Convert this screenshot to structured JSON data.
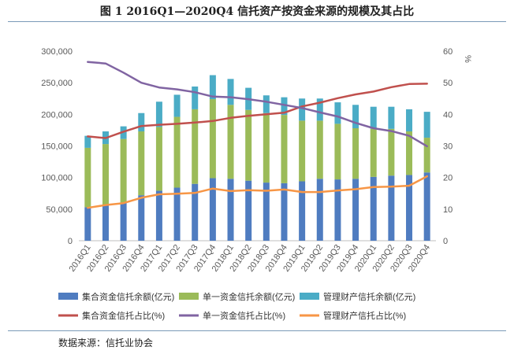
{
  "title": "图 1    2016Q1—2020Q4 信托资产按资金来源的规模及其占比",
  "source": "数据来源：信托业协会",
  "chart_data": {
    "type": "bar",
    "stacked": true,
    "categories": [
      "2016Q1",
      "2016Q2",
      "2016Q3",
      "2016Q4",
      "2017Q1",
      "2017Q2",
      "2017Q3",
      "2017Q4",
      "2018Q1",
      "2018Q2",
      "2018Q3",
      "2018Q4",
      "2019Q1",
      "2019Q2",
      "2019Q3",
      "2019Q4",
      "2020Q1",
      "2020Q2",
      "2020Q3",
      "2020Q4"
    ],
    "y_left": {
      "ylim": [
        0,
        300000
      ],
      "ticks": [
        "0",
        "50,000",
        "100,000",
        "150,000",
        "200,000",
        "250,000",
        "300,000"
      ]
    },
    "y_right": {
      "ylim": [
        0,
        60
      ],
      "ticks": [
        "0",
        "10",
        "20",
        "30",
        "40",
        "50",
        "60"
      ],
      "label": "%"
    },
    "grid": false,
    "legend_position": "bottom",
    "bar_series": [
      {
        "name": "集合资金信托余额(亿元)",
        "color": "#4f7cc0",
        "values": [
          53000,
          56000,
          60000,
          72000,
          79000,
          84000,
          90000,
          99000,
          98000,
          95000,
          92000,
          91000,
          94000,
          98000,
          97000,
          98000,
          101000,
          103000,
          104000,
          108000
        ]
      },
      {
        "name": "单一资金信托余额(亿元)",
        "color": "#9bbb59",
        "values": [
          94000,
          97000,
          101000,
          101000,
          101000,
          112000,
          118000,
          125000,
          117000,
          112000,
          110000,
          108000,
          96000,
          92000,
          88000,
          80000,
          76000,
          74000,
          69000,
          55000
        ]
      },
      {
        "name": "管理财产信托余额(亿元)",
        "color": "#4bacc6",
        "values": [
          19000,
          20000,
          20000,
          29000,
          40000,
          35000,
          36000,
          38000,
          41000,
          35000,
          28000,
          28000,
          35000,
          35000,
          34000,
          37000,
          35000,
          35000,
          35000,
          41000
        ]
      }
    ],
    "line_series": [
      {
        "name": "集合资金信托占比(%)",
        "color": "#c0504d",
        "values": [
          33,
          32.5,
          34.5,
          36.3,
          36.7,
          37,
          37.4,
          37.9,
          38.9,
          39.5,
          40,
          40.5,
          42.5,
          43.7,
          45.1,
          46.3,
          47.2,
          48.6,
          49.6,
          49.7
        ]
      },
      {
        "name": "单一资金信托占比(%)",
        "color": "#8064a2",
        "values": [
          56.6,
          56.1,
          53.2,
          50,
          48.5,
          47.9,
          47,
          45.6,
          45.4,
          44.8,
          44,
          43,
          42,
          40.6,
          39.3,
          37.3,
          35.6,
          34.7,
          33.2,
          29.9
        ]
      },
      {
        "name": "管理财产信托占比(%)",
        "color": "#f79646",
        "values": [
          10.4,
          11.3,
          11.9,
          13.6,
          14.7,
          14.9,
          15.1,
          16.5,
          15.7,
          16,
          15.8,
          16.2,
          15.4,
          15.4,
          15.9,
          16.3,
          17,
          17.1,
          17.4,
          20.4
        ]
      }
    ]
  }
}
